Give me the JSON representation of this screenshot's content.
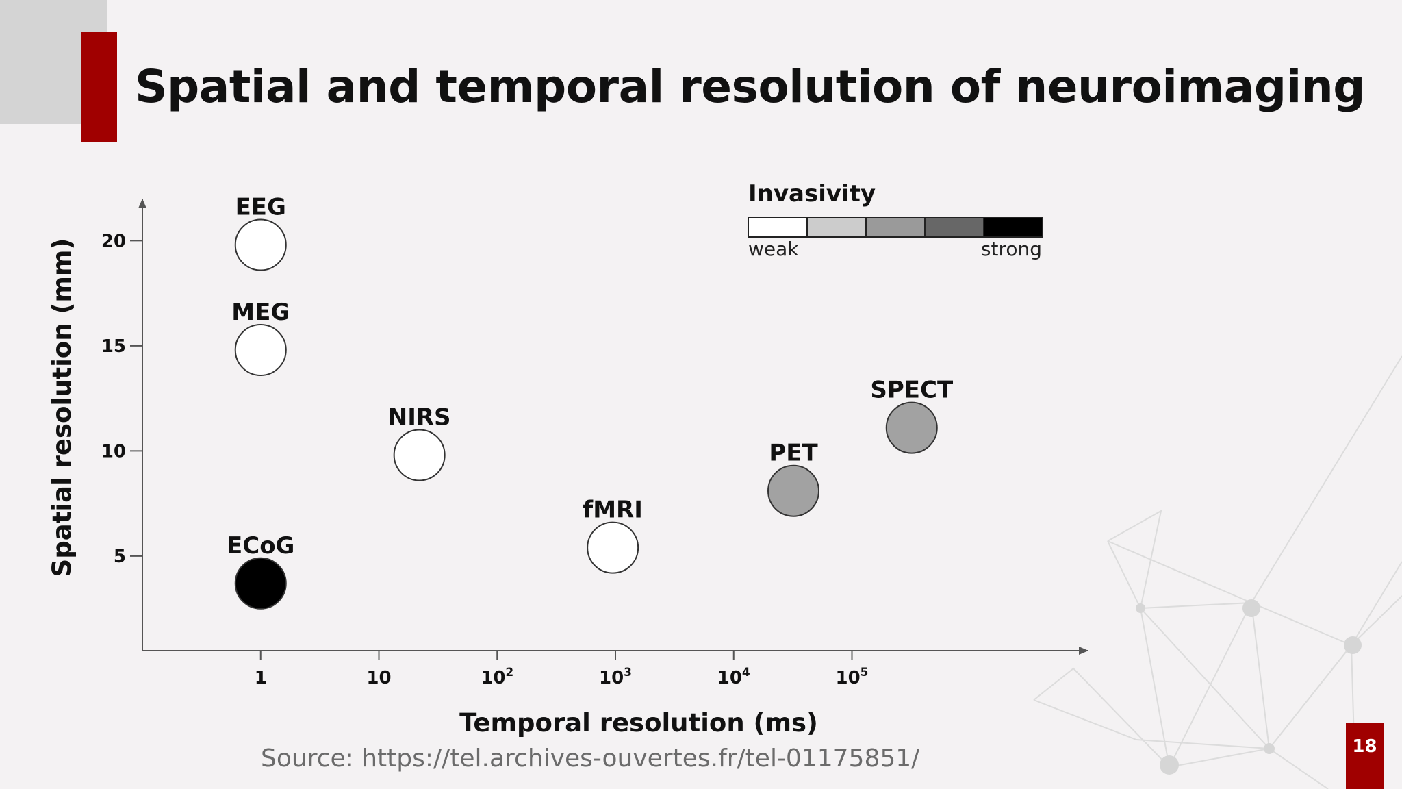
{
  "slide": {
    "title": "Spatial and temporal resolution of neuroimaging",
    "page_number": "18",
    "source": "Source: https://tel.archives-ouvertes.fr/tel-01175851/",
    "accent_color": "#a00000"
  },
  "chart_data": {
    "type": "scatter",
    "xlabel": "Temporal resolution (ms)",
    "ylabel": "Spatial resolution (mm)",
    "x_scale": "log10",
    "xlim": [
      0.1,
      10000000
    ],
    "ylim": [
      0.5,
      22
    ],
    "x_ticks": [
      {
        "value": 1,
        "base": "1",
        "exp": ""
      },
      {
        "value": 10,
        "base": "10",
        "exp": ""
      },
      {
        "value": 100,
        "base": "10",
        "exp": "2"
      },
      {
        "value": 1000,
        "base": "10",
        "exp": "3"
      },
      {
        "value": 10000,
        "base": "10",
        "exp": "4"
      },
      {
        "value": 100000,
        "base": "10",
        "exp": "5"
      }
    ],
    "y_ticks": [
      "5",
      "10",
      "15",
      "20"
    ],
    "points": [
      {
        "label": "EEG",
        "x": 1,
        "y": 19.8,
        "invasivity": 1,
        "fill": "#ffffff"
      },
      {
        "label": "MEG",
        "x": 1,
        "y": 14.8,
        "invasivity": 1,
        "fill": "#ffffff"
      },
      {
        "label": "NIRS",
        "x": 22,
        "y": 9.8,
        "invasivity": 1,
        "fill": "#ffffff"
      },
      {
        "label": "fMRI",
        "x": 950,
        "y": 5.4,
        "invasivity": 1,
        "fill": "#ffffff"
      },
      {
        "label": "PET",
        "x": 32000,
        "y": 8.1,
        "invasivity": 3,
        "fill": "#a2a2a2"
      },
      {
        "label": "SPECT",
        "x": 320000,
        "y": 11.1,
        "invasivity": 3,
        "fill": "#a2a2a2"
      },
      {
        "label": "ECoG",
        "x": 1,
        "y": 3.7,
        "invasivity": 5,
        "fill": "#000000"
      }
    ],
    "legend": {
      "title": "Invasivity",
      "placement": "top-right",
      "min_label": "weak",
      "max_label": "strong",
      "steps": [
        "#ffffff",
        "#cccccc",
        "#9a9a9a",
        "#676767",
        "#000000"
      ]
    }
  }
}
